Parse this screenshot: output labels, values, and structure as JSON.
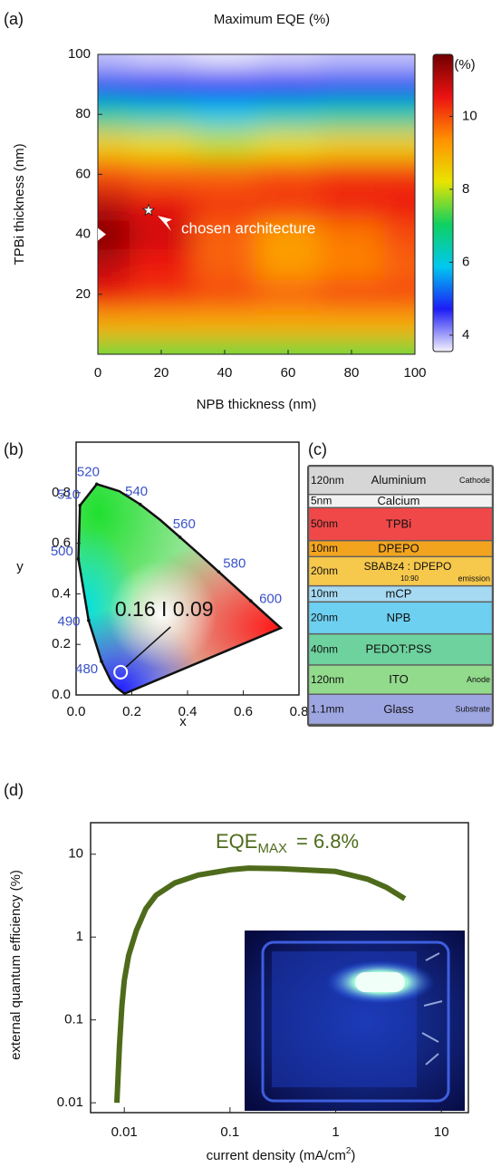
{
  "chart_data": [
    {
      "type": "heatmap",
      "panel_label": "(a)",
      "title": "Maximum EQE (%)",
      "x_label": "NPB thickness (nm)",
      "y_label": "TPBi thickness (nm)",
      "x": [
        0,
        20,
        40,
        60,
        80,
        100
      ],
      "y": [
        0,
        10,
        20,
        30,
        40,
        50,
        60,
        70,
        80,
        90,
        100
      ],
      "z": [
        [
          7.5,
          7.5,
          7.5,
          7.5,
          7.5,
          7.5
        ],
        [
          9,
          9,
          9,
          9,
          9,
          9
        ],
        [
          10.5,
          10.2,
          10,
          9.8,
          10,
          10
        ],
        [
          11,
          10.5,
          9.8,
          9.2,
          9.5,
          9.8
        ],
        [
          11.5,
          10.8,
          9.8,
          9.2,
          9.6,
          10
        ],
        [
          11,
          10.6,
          10.2,
          10.2,
          10.4,
          10.5
        ],
        [
          10,
          9.8,
          9.8,
          10,
          10.2,
          10.2
        ],
        [
          8.5,
          8.3,
          8,
          8.3,
          8.5,
          8.5
        ],
        [
          6.5,
          6.3,
          6,
          6.3,
          6.5,
          6.5
        ],
        [
          5,
          4.8,
          4.7,
          4.8,
          5,
          5
        ],
        [
          3.8,
          3.7,
          3.6,
          3.7,
          3.8,
          3.8
        ]
      ],
      "xlim": [
        0,
        100
      ],
      "ylim": [
        0,
        100
      ],
      "xticks": [
        0,
        20,
        40,
        60,
        80,
        100
      ],
      "yticks": [
        20,
        40,
        60,
        80,
        100
      ],
      "clim": [
        3.55,
        11.7
      ],
      "cticks": [
        4,
        6,
        8,
        10
      ],
      "colorbar_label": "(%)",
      "colormap": [
        "#f4f2fb",
        "#1c1cf5",
        "#00c8f0",
        "#10d060",
        "#e8e400",
        "#ff9000",
        "#ec1212",
        "#700000"
      ],
      "markers": [
        {
          "shape": "star",
          "x": 16,
          "y": 48,
          "text": "chosen architecture"
        },
        {
          "shape": "triangle",
          "x": 0,
          "y": 40
        }
      ]
    },
    {
      "type": "chromaticity",
      "panel_label": "(b)",
      "x_label": "x",
      "y_label": "y",
      "xlim": [
        0,
        0.8
      ],
      "ylim": [
        0,
        1
      ],
      "xticks": [
        {
          "value": 0,
          "label": "0.0"
        },
        0.2,
        0.4,
        0.6,
        0.8
      ],
      "yticks": [
        {
          "value": 0,
          "label": "0.0"
        },
        0.2,
        0.4,
        0.6,
        0.8
      ],
      "locus": {
        "x": [
          0.1741,
          0.144,
          0.124,
          0.091,
          0.045,
          0.008,
          0.014,
          0.074,
          0.155,
          0.23,
          0.302,
          0.373,
          0.444,
          0.512,
          0.575,
          0.627,
          0.691,
          0.735
        ],
        "y": [
          0.005,
          0.03,
          0.058,
          0.133,
          0.295,
          0.538,
          0.75,
          0.834,
          0.806,
          0.754,
          0.692,
          0.624,
          0.555,
          0.487,
          0.424,
          0.372,
          0.308,
          0.265
        ]
      },
      "wavelengths": {
        "labels": [
          480,
          490,
          500,
          510,
          520,
          540,
          560,
          580,
          600
        ],
        "x": [
          0.091,
          0.045,
          0.008,
          0.014,
          0.074,
          0.23,
          0.373,
          0.512,
          0.627
        ],
        "y": [
          0.133,
          0.295,
          0.538,
          0.75,
          0.834,
          0.754,
          0.624,
          0.487,
          0.372
        ]
      },
      "wavelength_color": "#3a52c8",
      "point": {
        "x": 0.16,
        "y": 0.09,
        "text": "0.16 I 0.09"
      }
    },
    {
      "type": "layer-stack",
      "panel_label": "(c)",
      "layers": [
        {
          "thickness": "120nm",
          "material": "Aluminium",
          "role": "Cathode",
          "color": "#d6d6d6"
        },
        {
          "thickness": "5nm",
          "material": "Calcium",
          "color": "#f2f2f2"
        },
        {
          "thickness": "50nm",
          "material": "TPBi",
          "color": "#f04848"
        },
        {
          "thickness": "10nm",
          "material": "DPEPO",
          "color": "#f3a41e"
        },
        {
          "thickness": "20nm",
          "material": "SBABz4 : DPEPO",
          "ratio": "10:90",
          "role": "emission",
          "color": "#f6c84c"
        },
        {
          "thickness": "10nm",
          "material": "mCP",
          "color": "#a6daf2"
        },
        {
          "thickness": "20nm",
          "material": "NPB",
          "color": "#6ed0f0"
        },
        {
          "thickness": "40nm",
          "material": "PEDOT:PSS",
          "color": "#6ed29e"
        },
        {
          "thickness": "120nm",
          "material": "ITO",
          "role": "Anode",
          "color": "#92da8c"
        },
        {
          "thickness": "1.1mm",
          "material": "Glass",
          "role": "Substrate",
          "color": "#9ea6e2"
        }
      ]
    },
    {
      "type": "line",
      "panel_label": "(d)",
      "log_x": true,
      "log_y": true,
      "y_label": "external quantum efficiency (%)",
      "x_label": {
        "text": "current density (mA/cm",
        "sup": "2",
        "after": ")"
      },
      "annotation": {
        "text": "EQE",
        "sub": "MAX",
        "after": "= 6.8%"
      },
      "xlim": [
        0.0048,
        18
      ],
      "ylim": [
        0.0076,
        24
      ],
      "xticks": [
        0.01,
        0.1,
        1,
        10
      ],
      "yticks": [
        0.01,
        0.1,
        1,
        10
      ],
      "x": [
        0.0085,
        0.009,
        0.0095,
        0.01,
        0.011,
        0.013,
        0.016,
        0.02,
        0.03,
        0.05,
        0.1,
        0.15,
        0.3,
        1,
        2,
        3,
        4.5
      ],
      "values": [
        0.01,
        0.05,
        0.15,
        0.3,
        0.6,
        1.2,
        2.2,
        3.2,
        4.5,
        5.6,
        6.5,
        6.8,
        6.7,
        6.2,
        5,
        4,
        2.9
      ],
      "color": "#4e6b1b"
    }
  ]
}
